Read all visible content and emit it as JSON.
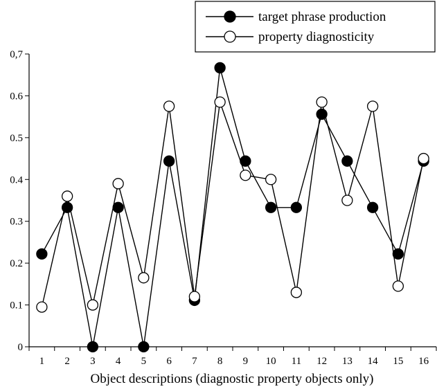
{
  "chart_data": {
    "type": "line",
    "xlabel": "Object descriptions (diagnostic property objects only)",
    "ylabel": "",
    "categories": [
      "1",
      "2",
      "3",
      "4",
      "5",
      "6",
      "7",
      "8",
      "9",
      "10",
      "11",
      "12",
      "13",
      "14",
      "15",
      "16"
    ],
    "yticks": [
      "0",
      "0.1",
      "0.2",
      "0.3",
      "0.4",
      "0.5",
      "0.6",
      "0,7"
    ],
    "ylim": [
      0,
      0.7
    ],
    "grid": false,
    "legend_position": "top-right",
    "series": [
      {
        "name": "target phrase production",
        "marker": "filled-circle",
        "color": "#000000",
        "values": [
          0.222,
          0.333,
          0.0,
          0.333,
          0.0,
          0.444,
          0.111,
          0.667,
          0.444,
          0.333,
          0.333,
          0.556,
          0.444,
          0.333,
          0.222,
          0.444
        ]
      },
      {
        "name": "property diagnosticity",
        "marker": "open-circle",
        "color": "#000000",
        "values": [
          0.095,
          0.36,
          0.1,
          0.39,
          0.165,
          0.575,
          0.12,
          0.585,
          0.41,
          0.4,
          0.13,
          0.585,
          0.35,
          0.575,
          0.145,
          0.45
        ]
      }
    ]
  }
}
